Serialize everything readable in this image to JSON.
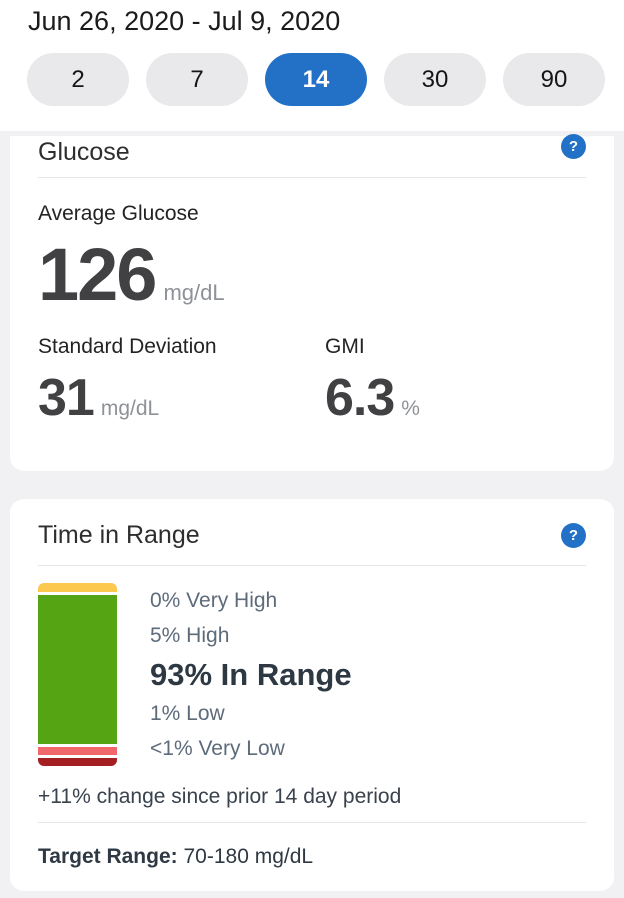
{
  "header": {
    "date_range": "Jun 26, 2020 - Jul 9, 2020",
    "period_options": [
      {
        "label": "2",
        "selected": false
      },
      {
        "label": "7",
        "selected": false
      },
      {
        "label": "14",
        "selected": true
      },
      {
        "label": "30",
        "selected": false
      },
      {
        "label": "90",
        "selected": false
      }
    ]
  },
  "glucose_card": {
    "title": "Glucose",
    "help_icon": "?",
    "average": {
      "label": "Average Glucose",
      "value": "126",
      "unit": "mg/dL"
    },
    "std_dev": {
      "label": "Standard Deviation",
      "value": "31",
      "unit": "mg/dL"
    },
    "gmi": {
      "label": "GMI",
      "value": "6.3",
      "unit": "%"
    }
  },
  "tir_card": {
    "title": "Time in Range",
    "help_icon": "?",
    "change_note": "+11% change since prior 14 day period",
    "target_range": {
      "label": "Target Range:",
      "value": "70-180 mg/dL"
    }
  },
  "chart_data": {
    "type": "bar",
    "subtype": "stacked-vertical",
    "title": "Time in Range",
    "categories": [
      "Very High",
      "High",
      "In Range",
      "Low",
      "Very Low"
    ],
    "values": [
      0,
      5,
      93,
      1,
      0.5
    ],
    "value_labels": [
      "0% Very High",
      "5% High",
      "93% In Range",
      "1% Low",
      "<1% Very Low"
    ],
    "segment_colors": [
      "#fdc84e",
      "#fdc84e",
      "#55a413",
      "#f0686b",
      "#a51e22"
    ],
    "emphasized_category": "In Range",
    "note": "+11% change since prior 14 day period",
    "target_range": "70-180 mg/dL",
    "legend_position": "right-of-bar"
  },
  "colors": {
    "accent_blue": "#2271c7",
    "pill_background": "#e9e9eb",
    "page_background": "#f1f1f3",
    "very_high": "#fdc84e",
    "high": "#fdc84e",
    "in_range": "#55a413",
    "low": "#f0686b",
    "very_low": "#a51e22"
  }
}
